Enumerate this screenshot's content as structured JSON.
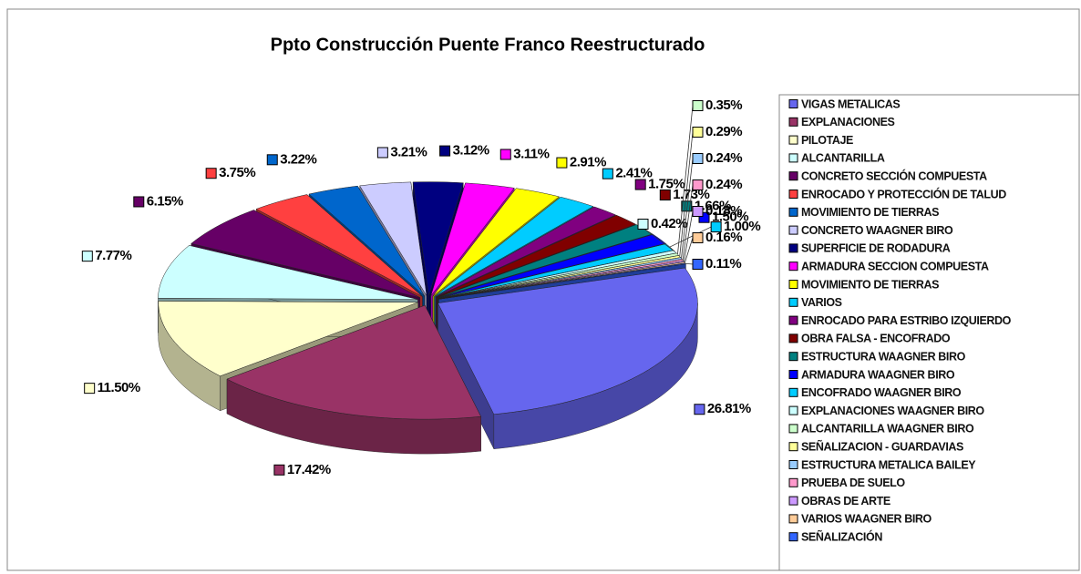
{
  "chart_data": {
    "type": "pie3d",
    "title": "Ppto Construcción Puente Franco Reestructurado",
    "categories": [
      "VIGAS METALICAS",
      "EXPLANACIONES",
      "PILOTAJE",
      "ALCANTARILLA",
      "CONCRETO SECCIÓN COMPUESTA",
      "ENROCADO Y PROTECCIÓN DE TALUD",
      "MOVIMIENTO DE TIERRAS",
      "CONCRETO WAAGNER BIRO",
      "SUPERFICIE DE RODADURA",
      "ARMADURA SECCION COMPUESTA",
      "MOVIMIENTO DE TIERRAS",
      "VARIOS",
      "ENROCADO PARA ESTRIBO IZQUIERDO",
      "OBRA FALSA - ENCOFRADO",
      "ESTRUCTURA WAAGNER BIRO",
      "ARMADURA WAAGNER BIRO",
      "ENCOFRADO WAAGNER BIRO",
      "EXPLANACIONES WAAGNER BIRO",
      "ALCANTARILLA WAAGNER BIRO",
      "SEÑALIZACION - GUARDAVIAS",
      "ESTRUCTURA METALICA BAILEY",
      "PRUEBA DE SUELO",
      "OBRAS DE ARTE",
      "VARIOS WAAGNER BIRO",
      "SEÑALIZACIÓN"
    ],
    "values": [
      26.81,
      17.42,
      11.5,
      7.77,
      6.15,
      3.75,
      3.22,
      3.21,
      3.12,
      3.11,
      2.91,
      2.41,
      1.75,
      1.73,
      1.66,
      1.5,
      1.0,
      0.42,
      0.35,
      0.29,
      0.24,
      0.24,
      0.18,
      0.16,
      0.11
    ],
    "value_labels": [
      "26.81%",
      "17.42%",
      "11.50%",
      "7.77%",
      "6.15%",
      "3.75%",
      "3.22%",
      "3.21%",
      "3.12%",
      "3.11%",
      "2.91%",
      "2.41%",
      "1.75%",
      "1.73%",
      "1.66%",
      "1.50%",
      "1.00%",
      "0.42%",
      "0.35%",
      "0.29%",
      "0.24%",
      "0.24%",
      "0.18%",
      "0.16%",
      "0.11%"
    ],
    "colors": [
      "#6666ee",
      "#993366",
      "#ffffcc",
      "#ccffff",
      "#660066",
      "#ff4040",
      "#0066cc",
      "#ccccff",
      "#000080",
      "#ff00ff",
      "#ffff00",
      "#00ccff",
      "#800080",
      "#800000",
      "#008080",
      "#0000ff",
      "#00ccff",
      "#ccffff",
      "#ccffcc",
      "#ffff99",
      "#99ccff",
      "#ff99cc",
      "#cc99ff",
      "#ffcc99",
      "#3366ff"
    ],
    "legend": "right"
  }
}
